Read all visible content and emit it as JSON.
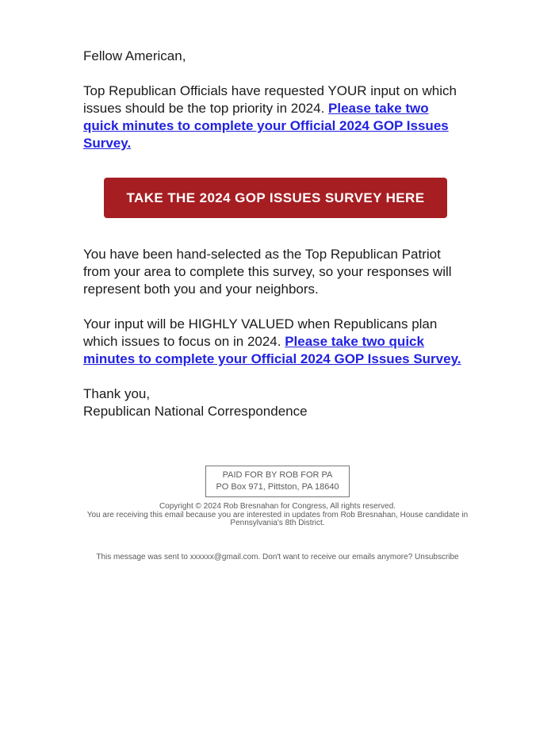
{
  "email": {
    "greeting": "Fellow American,",
    "paragraph1": {
      "text": "Top Republican Officials have requested YOUR input on which issues should be the top priority in 2024. ",
      "link": "Please take two quick minutes to complete your Official 2024 GOP Issues Survey."
    },
    "cta_button": {
      "label": "TAKE THE 2024 GOP ISSUES SURVEY HERE"
    },
    "paragraph2": "You have been hand-selected as the Top Republican Patriot from your area to complete this survey, so your responses will represent both you and your neighbors.",
    "paragraph3": {
      "text": "Your input will be HIGHLY VALUED when Republicans plan which issues to focus on in 2024. ",
      "link": "Please take two quick minutes to complete your Official 2024 GOP Issues Survey."
    },
    "signoff": {
      "line1": "Thank you,",
      "line2": "Republican National Correspondence"
    },
    "footer": {
      "paid_for_line1": "PAID FOR BY ROB FOR PA",
      "paid_for_line2": "PO Box 971, Pittston, PA 18640",
      "copyright_line1": "Copyright © 2024 Rob Bresnahan for Congress, All rights reserved.",
      "copyright_line2": "You are receiving this email because you are interested in updates from Rob Bresnahan, House candidate in Pennsylvania's 8th District.",
      "sent_text": "This message was sent to xxxxxx@gmail.com. Don't want to receive our emails anymore? ",
      "unsubscribe_label": "Unsubscribe"
    },
    "colors": {
      "button_red": "#a61e22",
      "link_blue": "#2222e1",
      "body_text": "#1b1b1b",
      "footer_gray": "#5a5a5a"
    }
  }
}
